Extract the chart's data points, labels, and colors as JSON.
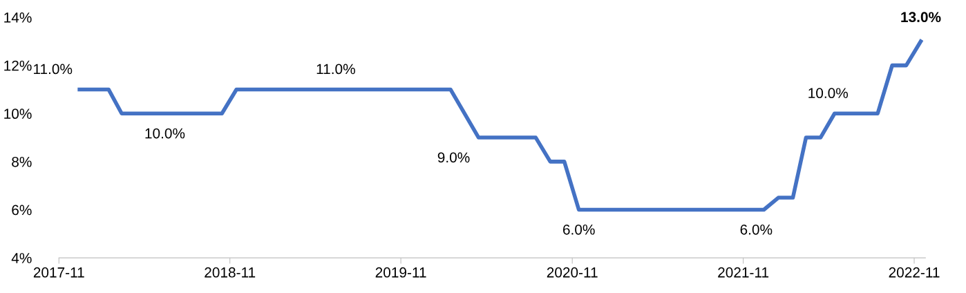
{
  "chart_data": {
    "type": "line",
    "x": [
      "2017-12-15",
      "2018-02-15",
      "2018-03-15",
      "2018-10-15",
      "2018-11-15",
      "2020-02-15",
      "2020-04-15",
      "2020-08-15",
      "2020-09-15",
      "2020-10-15",
      "2020-11-15",
      "2021-12-15",
      "2022-01-15",
      "2022-02-15",
      "2022-03-15",
      "2022-04-15",
      "2022-05-15",
      "2022-08-15",
      "2022-09-15",
      "2022-10-15",
      "2022-11-15"
    ],
    "series": [
      {
        "color": "#4472c4",
        "values": [
          11,
          11,
          10,
          10,
          11,
          11,
          9,
          9,
          8,
          8,
          6,
          6,
          6.5,
          6.5,
          9,
          9,
          10,
          10,
          12,
          12,
          13
        ]
      }
    ],
    "xlim": [
      "2017-11-01",
      "2022-11-25"
    ],
    "xticks": [
      {
        "value": "2017-11-01",
        "label": "2017-11"
      },
      {
        "value": "2018-11-01",
        "label": "2018-11"
      },
      {
        "value": "2019-11-01",
        "label": "2019-11"
      },
      {
        "value": "2020-11-01",
        "label": "2020-11"
      },
      {
        "value": "2021-11-01",
        "label": "2021-11"
      },
      {
        "value": "2022-11-01",
        "label": "2022-11"
      }
    ],
    "ylim": [
      4,
      14
    ],
    "yticks": [
      {
        "value": 4,
        "label": "4%"
      },
      {
        "value": 6,
        "label": "6%"
      },
      {
        "value": 8,
        "label": "8%"
      },
      {
        "value": 10,
        "label": "10%"
      },
      {
        "value": 12,
        "label": "12%"
      },
      {
        "value": 14,
        "label": "14%"
      }
    ],
    "grid": false,
    "marker": "none",
    "line_style": "solid",
    "annotations": [
      {
        "text": "11.0%",
        "x": "2017-12-15",
        "y": 11
      },
      {
        "text": "10.0%",
        "x": "2018-06-15",
        "y": 10
      },
      {
        "text": "11.0%",
        "x": "2019-06-15",
        "y": 11
      },
      {
        "text": "9.0%",
        "x": "2020-04-15",
        "y": 9
      },
      {
        "text": "6.0%",
        "x": "2020-11-15",
        "y": 6
      },
      {
        "text": "6.0%",
        "x": "2021-12-15",
        "y": 6
      },
      {
        "text": "10.0%",
        "x": "2022-06-15",
        "y": 10
      },
      {
        "text": "13.0%",
        "x": "2022-11-15",
        "y": 13
      }
    ]
  }
}
